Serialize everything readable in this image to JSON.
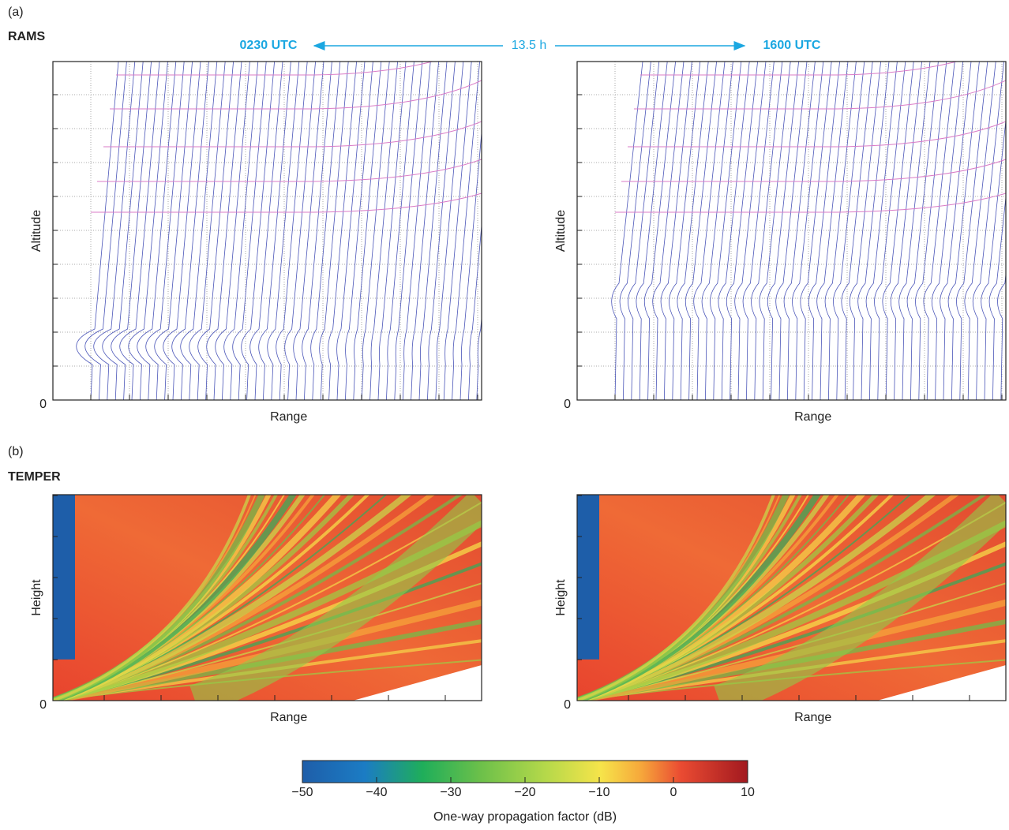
{
  "panel_a": {
    "label": "(a)",
    "model": "RAMS",
    "time_left": "0230 UTC",
    "interval": "13.5 h",
    "time_right": "1600 UTC",
    "plots": [
      {
        "ylabel": "Altitude",
        "xlabel": "Range",
        "yticks": [
          0
        ]
      },
      {
        "ylabel": "Altitude",
        "xlabel": "Range",
        "yticks": [
          0
        ]
      }
    ]
  },
  "panel_b": {
    "label": "(b)",
    "model": "TEMPER",
    "plots": [
      {
        "ylabel": "Height",
        "xlabel": "Range",
        "yticks": [
          0
        ]
      },
      {
        "ylabel": "Height",
        "xlabel": "Range",
        "yticks": [
          0
        ]
      }
    ]
  },
  "colorbar": {
    "label": "One-way propagation factor (dB)",
    "lim": [
      -50,
      10
    ],
    "ticks": [
      {
        "value": -50,
        "label": "−50"
      },
      {
        "value": -40,
        "label": "−40"
      },
      {
        "value": -30,
        "label": "−30"
      },
      {
        "value": -20,
        "label": "−20"
      },
      {
        "value": -10,
        "label": "−10"
      },
      0,
      10
    ]
  }
}
